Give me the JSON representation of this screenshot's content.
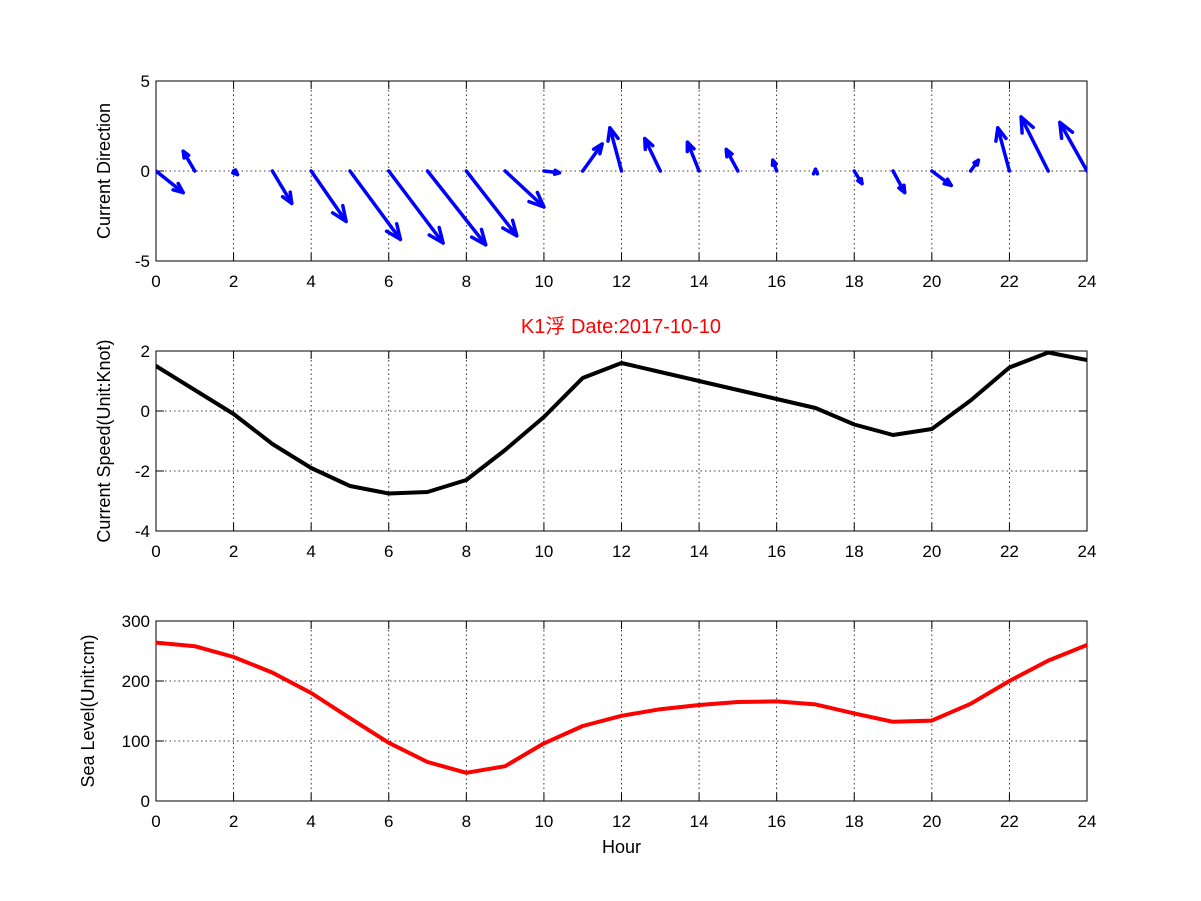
{
  "chart_data": [
    {
      "type": "quiver",
      "title": "",
      "xlabel": "",
      "ylabel": "Current Direction",
      "xlim": [
        0,
        24
      ],
      "ylim": [
        -5,
        5
      ],
      "xticks": [
        "0",
        "2",
        "4",
        "6",
        "8",
        "10",
        "12",
        "14",
        "16",
        "18",
        "20",
        "22",
        "24"
      ],
      "yticks": [
        "-5",
        "0",
        "5"
      ],
      "grid": true,
      "color": "#0000ff",
      "x": [
        0,
        1,
        2,
        3,
        4,
        5,
        6,
        7,
        8,
        9,
        10,
        11,
        12,
        13,
        14,
        15,
        16,
        17,
        18,
        19,
        20,
        21,
        22,
        23,
        24
      ],
      "u": [
        0.7,
        -0.3,
        0.1,
        0.5,
        0.9,
        1.3,
        1.4,
        1.5,
        1.3,
        1.0,
        0.4,
        0.5,
        -0.3,
        -0.4,
        -0.3,
        -0.3,
        -0.1,
        0,
        0.2,
        0.3,
        0.5,
        0.2,
        -0.3,
        -0.7,
        -0.7
      ],
      "v": [
        -1.2,
        1.1,
        -0.2,
        -1.8,
        -2.8,
        -3.8,
        -4.0,
        -4.1,
        -3.6,
        -2.0,
        -0.1,
        1.5,
        2.4,
        1.8,
        1.6,
        1.2,
        0.6,
        0.1,
        -0.7,
        -1.2,
        -0.8,
        0.6,
        2.4,
        3.0,
        2.7
      ]
    },
    {
      "type": "line",
      "title": "K1浮    Date:2017-10-10",
      "xlabel": "",
      "ylabel": "Current Speed(Unit:Knot)",
      "xlim": [
        0,
        24
      ],
      "ylim": [
        -4,
        2
      ],
      "xticks": [
        "0",
        "2",
        "4",
        "6",
        "8",
        "10",
        "12",
        "14",
        "16",
        "18",
        "20",
        "22",
        "24"
      ],
      "yticks": [
        "-4",
        "-2",
        "0",
        "2"
      ],
      "grid": true,
      "color": "#000000",
      "x": [
        0,
        1,
        2,
        3,
        4,
        5,
        6,
        7,
        8,
        9,
        10,
        11,
        12,
        13,
        14,
        15,
        16,
        17,
        18,
        19,
        20,
        21,
        22,
        23,
        24
      ],
      "y": [
        1.5,
        0.7,
        -0.1,
        -1.1,
        -1.9,
        -2.5,
        -2.75,
        -2.7,
        -2.3,
        -1.3,
        -0.2,
        1.1,
        1.6,
        1.3,
        1.0,
        0.7,
        0.4,
        0.1,
        -0.45,
        -0.8,
        -0.6,
        0.35,
        1.45,
        1.95,
        1.7
      ]
    },
    {
      "type": "line",
      "title": "",
      "xlabel": "Hour",
      "ylabel": "Sea Level(Unit:cm)",
      "xlim": [
        0,
        24
      ],
      "ylim": [
        0,
        300
      ],
      "xticks": [
        "0",
        "2",
        "4",
        "6",
        "8",
        "10",
        "12",
        "14",
        "16",
        "18",
        "20",
        "22",
        "24"
      ],
      "yticks": [
        "0",
        "100",
        "200",
        "300"
      ],
      "grid": true,
      "color": "#ff0000",
      "x": [
        0,
        1,
        2,
        3,
        4,
        5,
        6,
        7,
        8,
        9,
        10,
        11,
        12,
        13,
        14,
        15,
        16,
        17,
        18,
        19,
        20,
        21,
        22,
        23,
        24
      ],
      "y": [
        264,
        258,
        240,
        214,
        180,
        138,
        97,
        65,
        47,
        58,
        96,
        125,
        142,
        153,
        160,
        165,
        166,
        161,
        146,
        132,
        134,
        162,
        200,
        234,
        260
      ]
    }
  ]
}
